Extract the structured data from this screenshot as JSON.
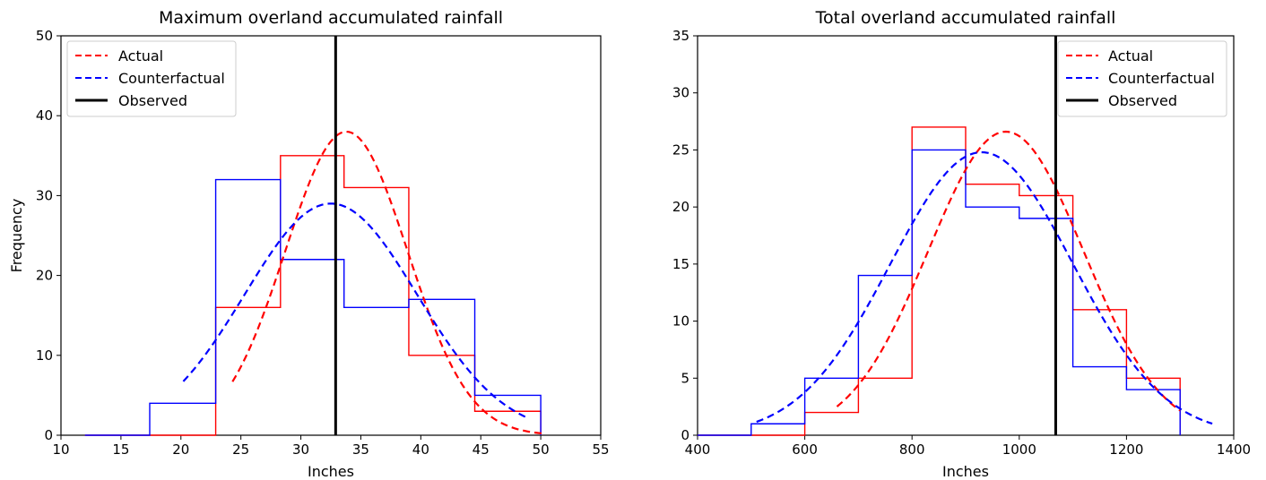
{
  "chart_data": [
    {
      "type": "histogram",
      "title": "Maximum overland accumulated rainfall",
      "xlabel": "Inches",
      "ylabel": "Frequency",
      "xlim": [
        10,
        55
      ],
      "ylim": [
        0,
        50
      ],
      "xticks": [
        10,
        15,
        20,
        25,
        30,
        35,
        40,
        45,
        50,
        55
      ],
      "yticks": [
        0,
        10,
        20,
        30,
        40,
        50
      ],
      "legend_position": "top-left",
      "legend": [
        "Actual",
        "Counterfactual",
        "Observed"
      ],
      "histograms": [
        {
          "name": "Actual",
          "color": "#ff0000",
          "bin_edges": [
            12.0,
            17.4,
            22.9,
            28.3,
            33.6,
            39.0,
            44.5,
            50.0
          ],
          "counts": [
            0,
            0,
            16,
            35,
            31,
            10,
            3
          ]
        },
        {
          "name": "Counterfactual",
          "color": "#0000ff",
          "bin_edges": [
            12.0,
            17.4,
            22.9,
            28.3,
            33.6,
            39.0,
            44.5,
            50.0
          ],
          "counts": [
            0,
            4,
            32,
            22,
            16,
            17,
            5
          ]
        }
      ],
      "curves": [
        {
          "name": "Actual",
          "color": "#ff0000",
          "style": "dashed",
          "mean": 33.8,
          "sd": 5.1,
          "peak": 38,
          "x_range": [
            24.3,
            50.2
          ]
        },
        {
          "name": "Counterfactual",
          "color": "#0000ff",
          "style": "dashed",
          "mean": 32.5,
          "sd": 7.2,
          "peak": 29,
          "x_range": [
            20.2,
            49.0
          ]
        }
      ],
      "vline": {
        "name": "Observed",
        "color": "#000000",
        "x": 32.9
      }
    },
    {
      "type": "histogram",
      "title": "Total overland accumulated rainfall",
      "xlabel": "Inches",
      "ylabel": "",
      "xlim": [
        400,
        1400
      ],
      "ylim": [
        0,
        35
      ],
      "xticks": [
        400,
        600,
        800,
        1000,
        1200,
        1400
      ],
      "yticks": [
        0,
        5,
        10,
        15,
        20,
        25,
        30,
        35
      ],
      "legend_position": "top-right",
      "legend": [
        "Actual",
        "Counterfactual",
        "Observed"
      ],
      "histograms": [
        {
          "name": "Actual",
          "color": "#ff0000",
          "bin_edges": [
            400,
            500,
            600,
            700,
            800,
            900,
            1000,
            1100,
            1200,
            1300
          ],
          "counts": [
            0,
            0,
            2,
            5,
            27,
            22,
            21,
            11,
            5
          ]
        },
        {
          "name": "Counterfactual",
          "color": "#0000ff",
          "bin_edges": [
            400,
            500,
            600,
            700,
            800,
            900,
            1000,
            1100,
            1200,
            1300
          ],
          "counts": [
            0,
            1,
            5,
            14,
            25,
            20,
            19,
            6,
            4
          ]
        }
      ],
      "curves": [
        {
          "name": "Actual",
          "color": "#ff0000",
          "style": "dashed",
          "mean": 975,
          "sd": 145,
          "peak": 26.6,
          "x_range": [
            660,
            1300
          ]
        },
        {
          "name": "Counterfactual",
          "color": "#0000ff",
          "style": "dashed",
          "mean": 930,
          "sd": 170,
          "peak": 24.8,
          "x_range": [
            510,
            1360
          ]
        }
      ],
      "vline": {
        "name": "Observed",
        "color": "#000000",
        "x": 1068
      }
    }
  ]
}
